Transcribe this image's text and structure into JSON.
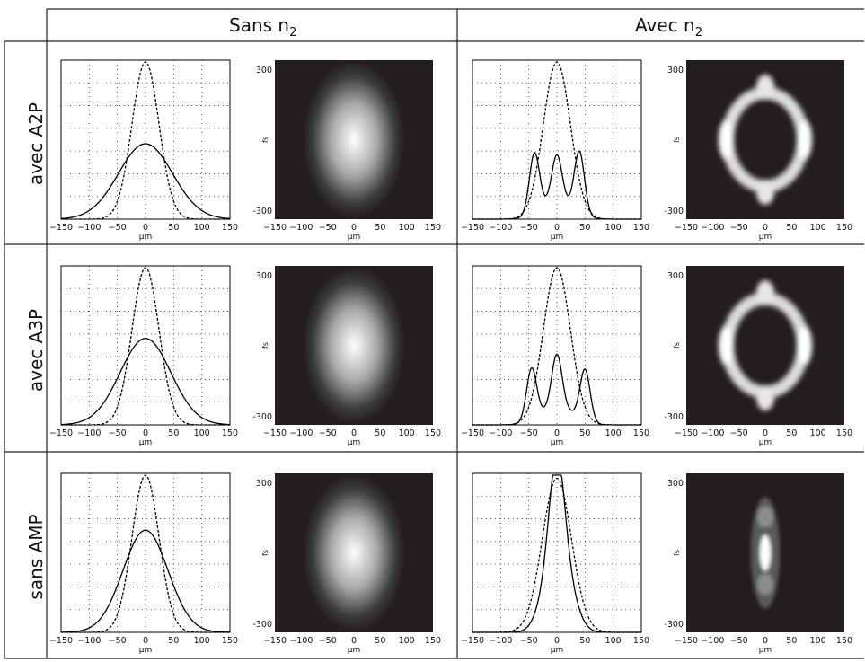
{
  "table": {
    "columns": [
      "Sans n2",
      "Avec n2"
    ],
    "rows": [
      "avec A2P",
      "avec A3P",
      "sans AMP"
    ]
  },
  "axes": {
    "profile_x_ticks": [
      "−150",
      "−100",
      "−50",
      "0",
      "50",
      "100",
      "150"
    ],
    "profile_x_unit": "µm",
    "image_x_ticks": [
      "−150",
      "−100",
      "−50",
      "0",
      "50",
      "100",
      "150"
    ],
    "image_x_unit": "µm",
    "image_y_unit": "fs",
    "image_y_ticks": [
      "300",
      "-300"
    ]
  },
  "colors": {
    "grid": "#333333",
    "curve": "#000000",
    "image_bg": "#241d1e",
    "image_glow": "#ffffff"
  },
  "chart_data": [
    {
      "type": "line",
      "panel": "avec A2P / Sans n2",
      "xlim": [
        -150,
        150
      ],
      "series": [
        {
          "style": "solid",
          "shape": "gaussian",
          "peak": 0.48,
          "width": 48
        },
        {
          "style": "dashed",
          "shape": "gaussian",
          "peak": 1.0,
          "width": 24
        }
      ]
    },
    {
      "type": "heatmap",
      "panel": "avec A2P / Sans n2",
      "shape": "ellipse",
      "xlim": [
        -150,
        150
      ],
      "ylim": [
        -300,
        300
      ]
    },
    {
      "type": "line",
      "panel": "avec A2P / Avec n2",
      "xlim": [
        -150,
        150
      ],
      "series": [
        {
          "style": "solid",
          "shape": "three-peaks",
          "peaks": [
            {
              "x": -40,
              "y": 0.38
            },
            {
              "x": 0,
              "y": 0.29
            },
            {
              "x": 40,
              "y": 0.39
            }
          ]
        },
        {
          "style": "dashed",
          "shape": "gaussian",
          "peak": 1.0,
          "width": 24
        }
      ]
    },
    {
      "type": "heatmap",
      "panel": "avec A2P / Avec n2",
      "shape": "ring",
      "xlim": [
        -150,
        150
      ],
      "ylim": [
        -300,
        300
      ]
    },
    {
      "type": "line",
      "panel": "avec A3P / Sans n2",
      "xlim": [
        -150,
        150
      ],
      "series": [
        {
          "style": "solid",
          "shape": "gaussian",
          "peak": 0.55,
          "width": 45
        },
        {
          "style": "dashed",
          "shape": "gaussian",
          "peak": 1.0,
          "width": 24
        }
      ]
    },
    {
      "type": "heatmap",
      "panel": "avec A3P / Sans n2",
      "shape": "ellipse",
      "xlim": [
        -150,
        150
      ],
      "ylim": [
        -300,
        300
      ]
    },
    {
      "type": "line",
      "panel": "avec A3P / Avec n2",
      "xlim": [
        -150,
        150
      ],
      "series": [
        {
          "style": "solid",
          "shape": "three-peaks",
          "peaks": [
            {
              "x": -45,
              "y": 0.33
            },
            {
              "x": 0,
              "y": 0.33
            },
            {
              "x": 50,
              "y": 0.33
            }
          ]
        },
        {
          "style": "dashed",
          "shape": "gaussian",
          "peak": 1.0,
          "width": 24
        }
      ]
    },
    {
      "type": "heatmap",
      "panel": "avec A3P / Avec n2",
      "shape": "ring",
      "xlim": [
        -150,
        150
      ],
      "ylim": [
        -300,
        300
      ]
    },
    {
      "type": "line",
      "panel": "sans AMP / Sans n2",
      "xlim": [
        -150,
        150
      ],
      "series": [
        {
          "style": "solid",
          "shape": "gaussian",
          "peak": 0.65,
          "width": 40
        },
        {
          "style": "dashed",
          "shape": "gaussian",
          "peak": 1.0,
          "width": 24
        }
      ]
    },
    {
      "type": "heatmap",
      "panel": "sans AMP / Sans n2",
      "shape": "ellipse",
      "xlim": [
        -150,
        150
      ],
      "ylim": [
        -300,
        300
      ]
    },
    {
      "type": "line",
      "panel": "sans AMP / Avec n2",
      "xlim": [
        -150,
        150
      ],
      "series": [
        {
          "style": "solid",
          "shape": "narrow-peak-shoulders",
          "peak": 1.0
        },
        {
          "style": "dashed",
          "shape": "gaussian",
          "peak": 0.98,
          "width": 26
        }
      ]
    },
    {
      "type": "heatmap",
      "panel": "sans AMP / Avec n2",
      "shape": "small-elongated",
      "xlim": [
        -150,
        150
      ],
      "ylim": [
        -300,
        300
      ]
    }
  ]
}
